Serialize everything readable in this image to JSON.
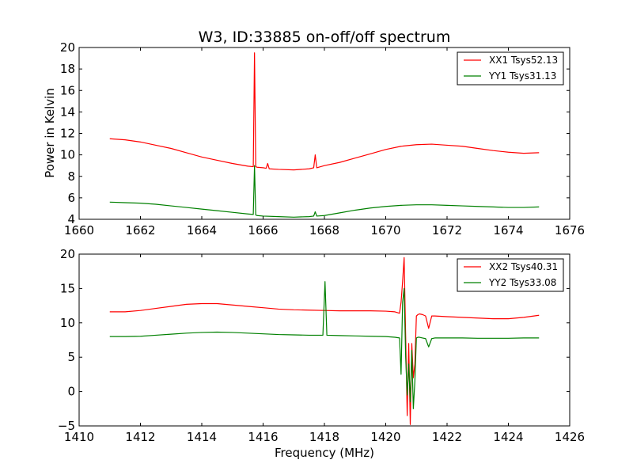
{
  "chart_data": [
    {
      "type": "line",
      "title": "W3, ID:33885 on-off/off spectrum",
      "xlabel": "",
      "ylabel": "Power in Kelvin",
      "xlim": [
        1660,
        1676
      ],
      "ylim": [
        4,
        20
      ],
      "xticks": [
        1660,
        1662,
        1664,
        1666,
        1668,
        1670,
        1672,
        1674,
        1676
      ],
      "yticks": [
        4,
        6,
        8,
        10,
        12,
        14,
        16,
        18,
        20
      ],
      "legend": "top-right",
      "grid": false,
      "series": [
        {
          "name": "XX1 Tsys52.13",
          "color": "#ff0000",
          "x": [
            1661.0,
            1661.5,
            1662.0,
            1662.5,
            1663.0,
            1663.5,
            1664.0,
            1664.5,
            1665.0,
            1665.5,
            1665.68,
            1665.72,
            1665.76,
            1665.8,
            1666.0,
            1666.1,
            1666.15,
            1666.2,
            1666.5,
            1667.0,
            1667.5,
            1667.65,
            1667.7,
            1667.75,
            1668.0,
            1668.5,
            1669.0,
            1669.5,
            1670.0,
            1670.5,
            1671.0,
            1671.5,
            1672.0,
            1672.5,
            1673.0,
            1673.5,
            1674.0,
            1674.5,
            1675.0
          ],
          "values": [
            11.5,
            11.4,
            11.2,
            10.9,
            10.6,
            10.2,
            9.8,
            9.5,
            9.2,
            8.95,
            8.9,
            19.5,
            8.9,
            8.85,
            8.8,
            8.75,
            9.2,
            8.7,
            8.65,
            8.6,
            8.7,
            8.8,
            10.0,
            8.8,
            9.0,
            9.3,
            9.7,
            10.1,
            10.5,
            10.8,
            10.95,
            11.0,
            10.9,
            10.8,
            10.6,
            10.4,
            10.25,
            10.15,
            10.2
          ]
        },
        {
          "name": "YY1 Tsys31.13",
          "color": "#008000",
          "x": [
            1661.0,
            1661.5,
            1662.0,
            1662.5,
            1663.0,
            1663.5,
            1664.0,
            1664.5,
            1665.0,
            1665.5,
            1665.68,
            1665.72,
            1665.76,
            1665.8,
            1666.0,
            1666.5,
            1667.0,
            1667.5,
            1667.65,
            1667.7,
            1667.75,
            1668.0,
            1668.5,
            1669.0,
            1669.5,
            1670.0,
            1670.5,
            1671.0,
            1671.5,
            1672.0,
            1672.5,
            1673.0,
            1673.5,
            1674.0,
            1674.5,
            1675.0
          ],
          "values": [
            5.6,
            5.55,
            5.5,
            5.4,
            5.25,
            5.1,
            4.95,
            4.8,
            4.65,
            4.5,
            4.45,
            9.0,
            4.4,
            4.35,
            4.3,
            4.25,
            4.2,
            4.25,
            4.3,
            4.7,
            4.3,
            4.35,
            4.6,
            4.85,
            5.05,
            5.2,
            5.3,
            5.35,
            5.35,
            5.3,
            5.25,
            5.2,
            5.15,
            5.1,
            5.1,
            5.15
          ]
        }
      ]
    },
    {
      "type": "line",
      "title": "",
      "xlabel": "Frequency (MHz)",
      "ylabel": "",
      "xlim": [
        1410,
        1426
      ],
      "ylim": [
        -5,
        20
      ],
      "xticks": [
        1410,
        1412,
        1414,
        1416,
        1418,
        1420,
        1422,
        1424,
        1426
      ],
      "yticks": [
        -5,
        0,
        5,
        10,
        15,
        20
      ],
      "legend": "top-right",
      "grid": false,
      "series": [
        {
          "name": "XX2 Tsys40.31",
          "color": "#ff0000",
          "x": [
            1411.0,
            1411.5,
            1412.0,
            1412.5,
            1413.0,
            1413.5,
            1414.0,
            1414.5,
            1415.0,
            1415.5,
            1416.0,
            1416.5,
            1417.0,
            1417.5,
            1418.0,
            1418.5,
            1419.0,
            1419.5,
            1420.0,
            1420.3,
            1420.45,
            1420.5,
            1420.55,
            1420.6,
            1420.65,
            1420.7,
            1420.75,
            1420.8,
            1420.85,
            1420.9,
            1420.95,
            1421.0,
            1421.05,
            1421.1,
            1421.2,
            1421.3,
            1421.4,
            1421.5,
            1421.6,
            1422.0,
            1422.5,
            1423.0,
            1423.5,
            1424.0,
            1424.5,
            1425.0
          ],
          "values": [
            11.6,
            11.6,
            11.8,
            12.1,
            12.4,
            12.7,
            12.8,
            12.8,
            12.6,
            12.4,
            12.2,
            12.0,
            11.9,
            11.85,
            11.8,
            11.75,
            11.75,
            11.75,
            11.7,
            11.6,
            11.4,
            13.0,
            16.0,
            19.5,
            8.0,
            -3.5,
            7.0,
            -4.8,
            7.0,
            2.0,
            4.0,
            11.0,
            11.2,
            11.3,
            11.2,
            11.0,
            9.2,
            11.0,
            11.0,
            10.9,
            10.8,
            10.7,
            10.6,
            10.6,
            10.8,
            11.1
          ]
        },
        {
          "name": "YY2 Tsys33.08",
          "color": "#008000",
          "x": [
            1411.0,
            1411.5,
            1412.0,
            1412.5,
            1413.0,
            1413.5,
            1414.0,
            1414.5,
            1415.0,
            1415.5,
            1416.0,
            1416.5,
            1417.0,
            1417.5,
            1417.95,
            1418.02,
            1418.08,
            1418.5,
            1419.0,
            1419.5,
            1420.0,
            1420.3,
            1420.45,
            1420.5,
            1420.55,
            1420.6,
            1420.65,
            1420.7,
            1420.75,
            1420.8,
            1420.85,
            1420.9,
            1420.95,
            1421.0,
            1421.05,
            1421.1,
            1421.2,
            1421.3,
            1421.4,
            1421.5,
            1421.6,
            1422.0,
            1422.5,
            1423.0,
            1423.5,
            1424.0,
            1424.5,
            1425.0
          ],
          "values": [
            8.0,
            8.0,
            8.05,
            8.2,
            8.35,
            8.5,
            8.6,
            8.65,
            8.6,
            8.5,
            8.4,
            8.3,
            8.25,
            8.2,
            8.2,
            16.0,
            8.2,
            8.15,
            8.1,
            8.05,
            8.0,
            7.9,
            7.8,
            2.5,
            13.0,
            15.0,
            5.0,
            -0.5,
            4.0,
            -1.5,
            6.0,
            -2.5,
            1.5,
            7.8,
            7.9,
            7.9,
            7.8,
            7.7,
            6.5,
            7.7,
            7.8,
            7.8,
            7.8,
            7.75,
            7.75,
            7.75,
            7.8,
            7.8
          ]
        }
      ]
    }
  ]
}
